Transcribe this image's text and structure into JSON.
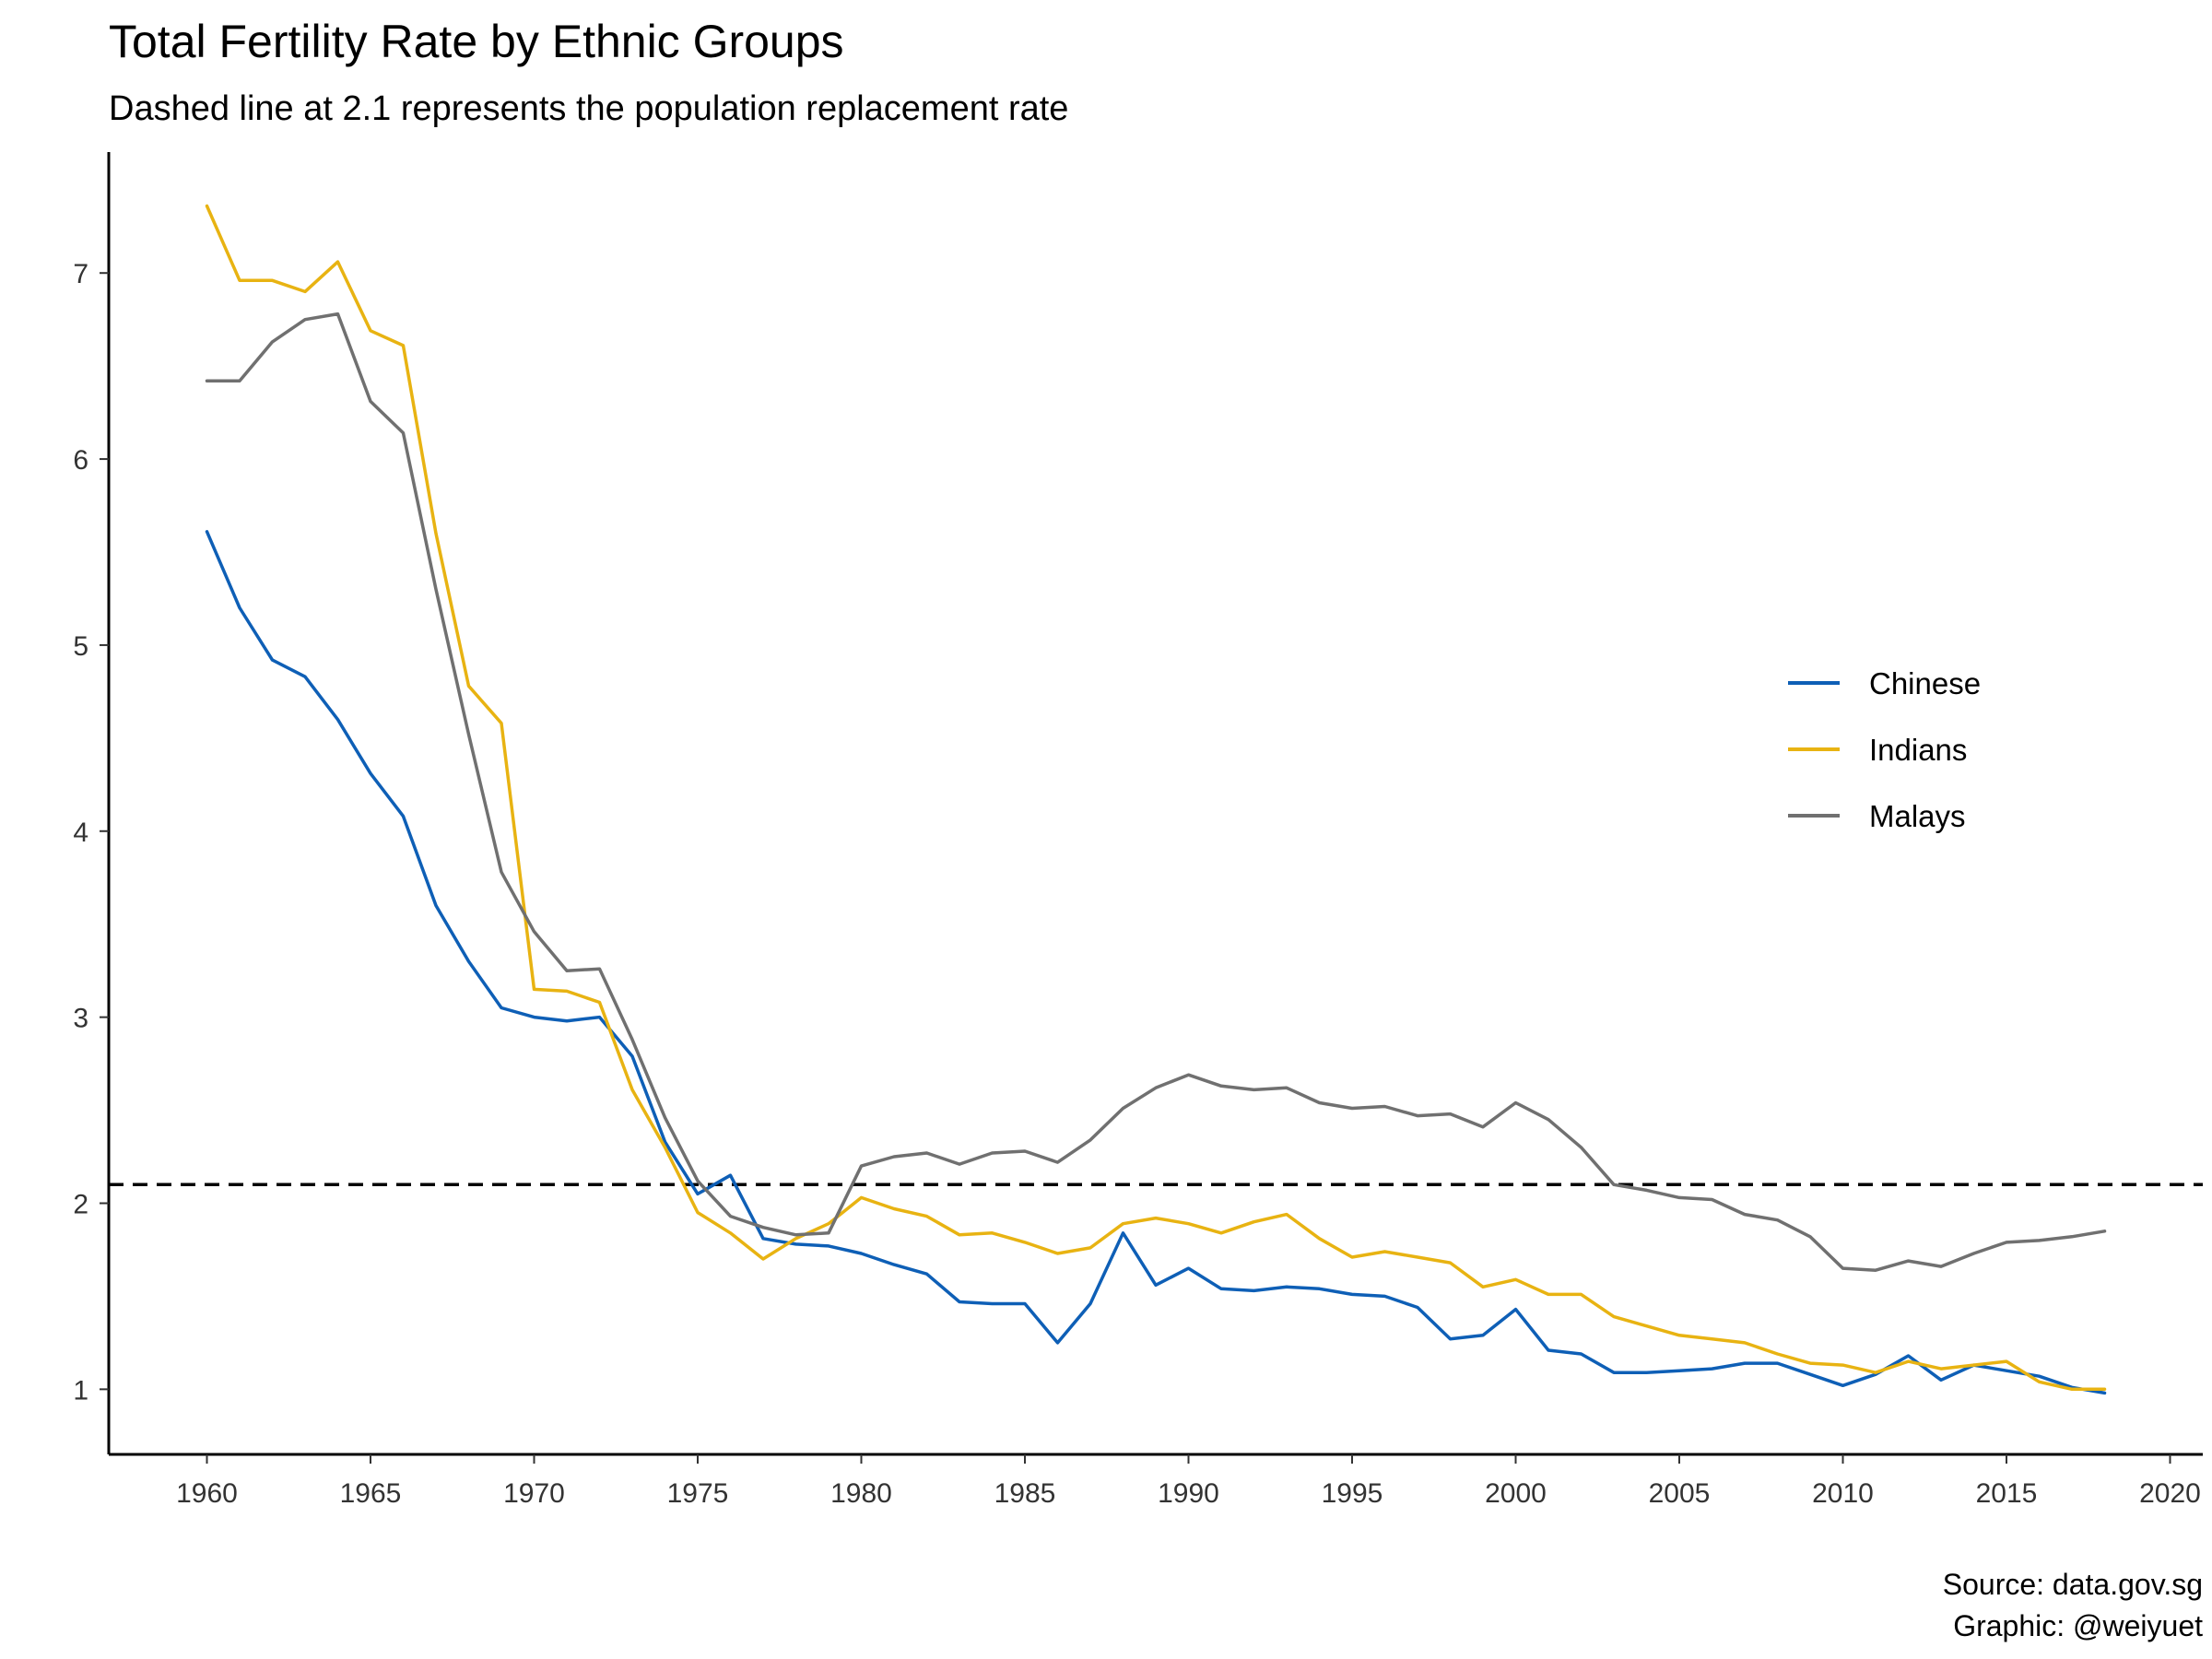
{
  "chart_data": {
    "type": "line",
    "title": "Total Fertility Rate by Ethnic Groups",
    "subtitle": "Dashed line at 2.1 represents the population replacement rate",
    "caption": [
      "Source: data.gov.sg",
      "Graphic: @weiyuet"
    ],
    "xlabel": "",
    "ylabel": "",
    "xlim": [
      1957,
      2021
    ],
    "ylim": [
      0.65,
      7.65
    ],
    "x_ticks": [
      1960,
      1965,
      1970,
      1975,
      1980,
      1985,
      1990,
      1995,
      2000,
      2005,
      2010,
      2015,
      2020
    ],
    "y_ticks": [
      1,
      2,
      3,
      4,
      5,
      6,
      7
    ],
    "reference_line": {
      "y": 2.1,
      "style": "dashed",
      "color": "#000000"
    },
    "grid": false,
    "legend_position": "right",
    "x": [
      1960,
      1961,
      1962,
      1963,
      1964,
      1965,
      1966,
      1967,
      1968,
      1969,
      1970,
      1971,
      1972,
      1973,
      1974,
      1975,
      1976,
      1977,
      1978,
      1979,
      1980,
      1981,
      1982,
      1983,
      1984,
      1985,
      1986,
      1987,
      1988,
      1989,
      1990,
      1991,
      1992,
      1993,
      1994,
      1995,
      1996,
      1997,
      1998,
      1999,
      2000,
      2001,
      2002,
      2003,
      2004,
      2005,
      2006,
      2007,
      2008,
      2009,
      2010,
      2011,
      2012,
      2013,
      2014,
      2015,
      2016,
      2017,
      2018
    ],
    "series": [
      {
        "name": "Chinese",
        "color": "#0E5FB6",
        "values": [
          5.61,
          5.2,
          4.92,
          4.83,
          4.6,
          4.31,
          4.08,
          3.6,
          3.3,
          3.05,
          3.0,
          2.98,
          3.0,
          2.79,
          2.33,
          2.05,
          2.15,
          1.81,
          1.78,
          1.77,
          1.73,
          1.67,
          1.62,
          1.47,
          1.46,
          1.46,
          1.25,
          1.46,
          1.84,
          1.56,
          1.65,
          1.54,
          1.53,
          1.55,
          1.54,
          1.51,
          1.5,
          1.44,
          1.27,
          1.29,
          1.43,
          1.21,
          1.19,
          1.09,
          1.09,
          1.1,
          1.11,
          1.14,
          1.14,
          1.08,
          1.02,
          1.08,
          1.18,
          1.05,
          1.13,
          1.1,
          1.07,
          1.01,
          0.98
        ]
      },
      {
        "name": "Indians",
        "color": "#E8B312",
        "values": [
          7.36,
          6.96,
          6.96,
          6.9,
          7.06,
          6.69,
          6.61,
          5.6,
          4.78,
          4.58,
          3.15,
          3.14,
          3.08,
          2.61,
          2.3,
          1.95,
          1.84,
          1.7,
          1.81,
          1.89,
          2.03,
          1.97,
          1.93,
          1.83,
          1.84,
          1.79,
          1.73,
          1.76,
          1.89,
          1.92,
          1.89,
          1.84,
          1.9,
          1.94,
          1.81,
          1.71,
          1.74,
          1.71,
          1.68,
          1.55,
          1.59,
          1.51,
          1.51,
          1.39,
          1.34,
          1.29,
          1.27,
          1.25,
          1.19,
          1.14,
          1.13,
          1.09,
          1.15,
          1.11,
          1.13,
          1.15,
          1.04,
          1.0,
          1.0
        ]
      },
      {
        "name": "Malays",
        "color": "#707070",
        "values": [
          6.42,
          6.42,
          6.63,
          6.75,
          6.78,
          6.31,
          6.14,
          5.3,
          4.52,
          3.78,
          3.46,
          3.25,
          3.26,
          2.88,
          2.46,
          2.12,
          1.93,
          1.87,
          1.83,
          1.84,
          2.2,
          2.25,
          2.27,
          2.21,
          2.27,
          2.28,
          2.22,
          2.34,
          2.51,
          2.62,
          2.69,
          2.63,
          2.61,
          2.62,
          2.54,
          2.51,
          2.52,
          2.47,
          2.48,
          2.41,
          2.54,
          2.45,
          2.3,
          2.1,
          2.07,
          2.03,
          2.02,
          1.94,
          1.91,
          1.82,
          1.65,
          1.64,
          1.69,
          1.66,
          1.73,
          1.79,
          1.8,
          1.82,
          1.85
        ]
      }
    ]
  }
}
